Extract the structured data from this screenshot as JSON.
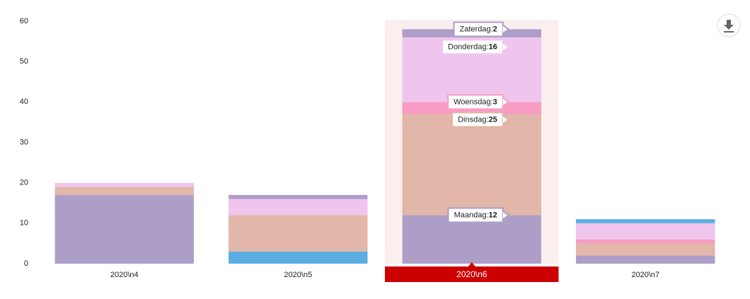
{
  "chart_data": {
    "type": "bar",
    "stacked": true,
    "categories": [
      "2020\\n4",
      "2020\\n5",
      "2020\\n6",
      "2020\\n7"
    ],
    "highlighted_category": 2,
    "series": [
      {
        "name": null,
        "color": "#5baee2",
        "values": [
          0,
          3,
          0,
          0
        ]
      },
      {
        "name": "Maandag",
        "color": "#ad9ec8",
        "values": [
          17,
          0,
          12,
          2
        ]
      },
      {
        "name": "Dinsdag",
        "color": "#e2b6a8",
        "values": [
          2,
          9,
          25,
          3
        ]
      },
      {
        "name": "Woensdag",
        "color": "#f99cc4",
        "values": [
          0,
          0,
          3,
          1
        ]
      },
      {
        "name": "Donderdag",
        "color": "#efc5ee",
        "values": [
          1,
          4,
          16,
          4
        ]
      },
      {
        "name": null,
        "color": "#5baee2",
        "values": [
          0,
          0,
          0,
          1
        ]
      },
      {
        "name": "Zaterdag",
        "color": "#ad9ec8",
        "values": [
          0,
          1,
          2,
          0
        ]
      }
    ],
    "ylim": [
      0,
      60
    ],
    "yticks": [
      0,
      10,
      20,
      30,
      40,
      50,
      60
    ],
    "grid": false
  }
}
